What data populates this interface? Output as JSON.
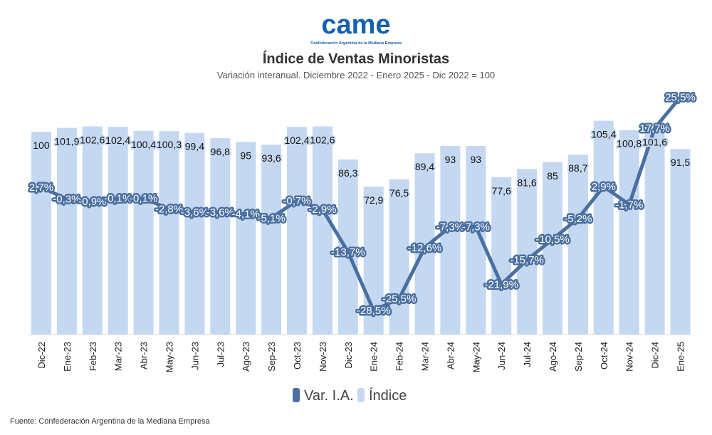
{
  "logo": {
    "text": "came",
    "subtitle": "Confederación Argentina de la Mediana Empresa"
  },
  "chart_data": {
    "type": "bar+line",
    "title": "Índice de Ventas Minoristas",
    "subtitle": "Variación interanual. Diciembre 2022 - Enero 2025 - Dic 2022 = 100",
    "categories": [
      "Dic-22",
      "Ene-23",
      "Feb-23",
      "Mar-23",
      "Abr-23",
      "May-23",
      "Jun-23",
      "Jul-23",
      "Ago-23",
      "Sep-23",
      "Oct-23",
      "Nov-23",
      "Dic-23",
      "Ene-24",
      "Feb-24",
      "Mar-24",
      "Abr-24",
      "May-24",
      "Jun-24",
      "Jul-24",
      "Ago-24",
      "Sep-24",
      "Oct-24",
      "Nov-24",
      "Dic-24",
      "Ene-25"
    ],
    "series": [
      {
        "name": "Índice",
        "type": "bar",
        "color": "#c5d8f2",
        "values": [
          100,
          101.9,
          102.6,
          102.4,
          100.4,
          100.3,
          99.4,
          96.8,
          95,
          93.6,
          102.4,
          102.6,
          86.3,
          72.9,
          76.5,
          89.4,
          93,
          93,
          77.6,
          81.6,
          85,
          88.7,
          105.4,
          100.8,
          101.6,
          91.5
        ]
      },
      {
        "name": "Var. I.A.",
        "type": "line",
        "color": "#4a6fa0",
        "unit": "%",
        "values": [
          2.7,
          -0.3,
          -0.9,
          -0.1,
          -0.1,
          -2.8,
          -3.6,
          -3.6,
          -4.1,
          -5.1,
          -0.7,
          -2.9,
          -13.7,
          -28.5,
          -25.5,
          -12.6,
          -7.3,
          -7.3,
          -21.9,
          -15.7,
          -10.5,
          -5.2,
          2.9,
          -1.7,
          17.7,
          25.5
        ]
      }
    ],
    "legend": [
      "Var. I.A.",
      "Índice"
    ],
    "legend_position": "bottom",
    "grid": false
  },
  "source": "Fuente: Confederación Argentina de la Mediana Empresa"
}
